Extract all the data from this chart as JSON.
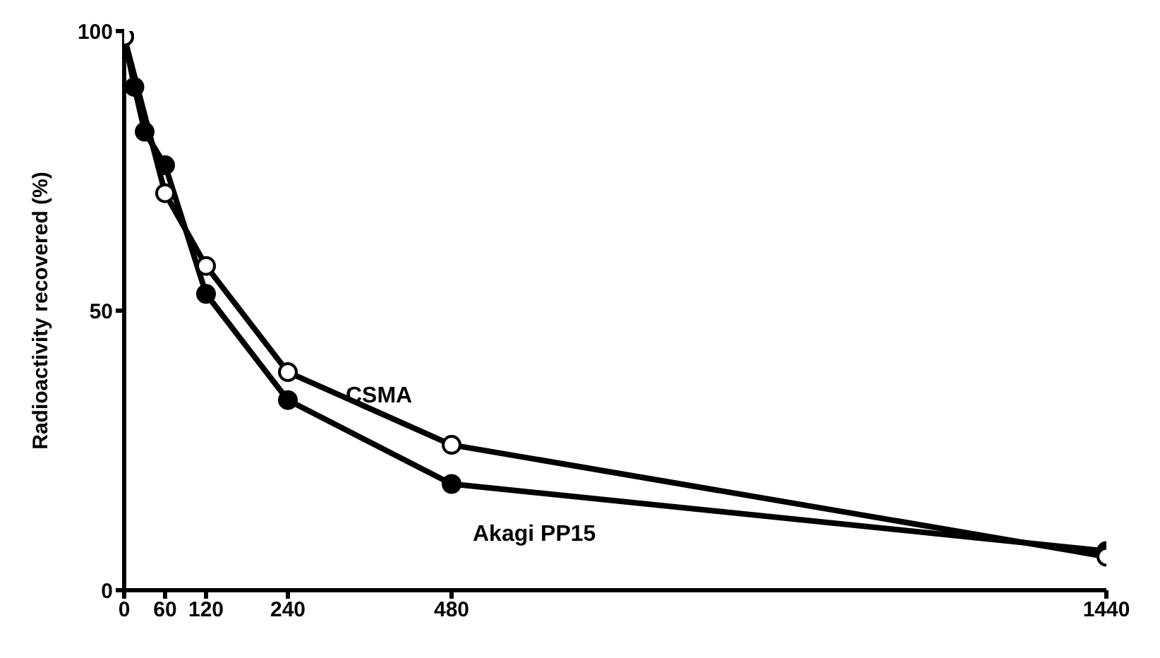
{
  "chart_data": {
    "type": "line",
    "ylabel": "Radioactivity recovered (%)",
    "xlim": [
      0,
      1440
    ],
    "xticks": [
      0,
      60,
      120,
      240,
      480,
      1440
    ],
    "ylim": [
      0,
      100
    ],
    "yticks": [
      0,
      50,
      100
    ],
    "grid": false,
    "legend": false,
    "marker": "circle",
    "line_style": "solid",
    "series": [
      {
        "name": "Akagi PP15",
        "color": "#000000",
        "x": [
          0,
          15,
          30,
          60,
          120,
          240,
          480,
          1440
        ],
        "values": [
          99,
          90,
          82,
          76,
          53,
          34,
          19,
          7
        ]
      },
      {
        "name": "CSMA",
        "color": "#000000",
        "x": [
          0,
          60,
          120,
          240,
          480,
          1440
        ],
        "values": [
          99,
          71,
          58,
          39,
          26,
          6
        ]
      }
    ]
  }
}
